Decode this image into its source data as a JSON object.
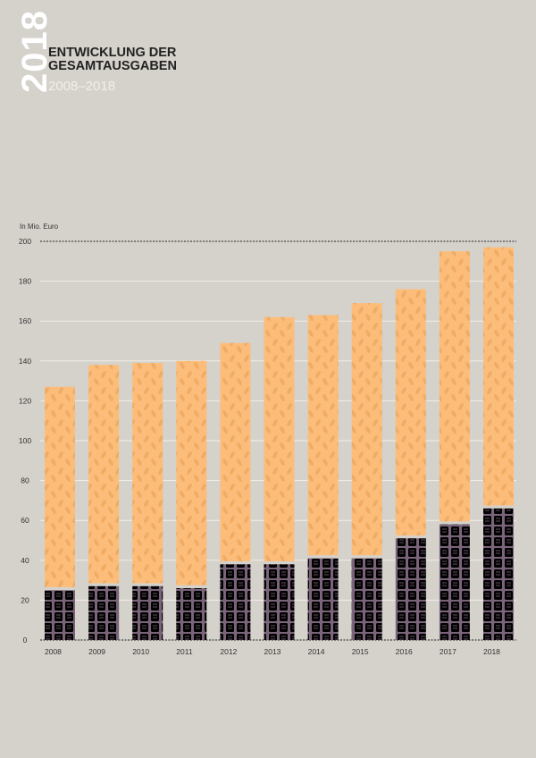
{
  "header": {
    "year": "2018",
    "title_line1": "ENTWICKLUNG DER",
    "title_line2": "GESAMTAUSGABEN",
    "subtitle": "2008–2018"
  },
  "chart_data": {
    "type": "bar",
    "stacked": true,
    "ylabel": "In Mio. Euro",
    "ylim": [
      0,
      200
    ],
    "yticks": [
      0,
      20,
      40,
      60,
      80,
      100,
      120,
      140,
      160,
      180,
      200
    ],
    "categories": [
      "2008",
      "2009",
      "2010",
      "2011",
      "2012",
      "2013",
      "2014",
      "2015",
      "2016",
      "2017",
      "2018"
    ],
    "series": [
      {
        "values": [
          25,
          27,
          27,
          26,
          38,
          38,
          41,
          41,
          51,
          58,
          66
        ],
        "color": "#000000",
        "accent": "#7a6479"
      },
      {
        "values": [
          102,
          111,
          112,
          114,
          111,
          124,
          122,
          128,
          125,
          137,
          131
        ],
        "color": "#fdbd7a",
        "accent": "#eba55c"
      }
    ],
    "totals": [
      127,
      138,
      139,
      140,
      149,
      162,
      163,
      169,
      176,
      195,
      197
    ],
    "grid": true
  }
}
